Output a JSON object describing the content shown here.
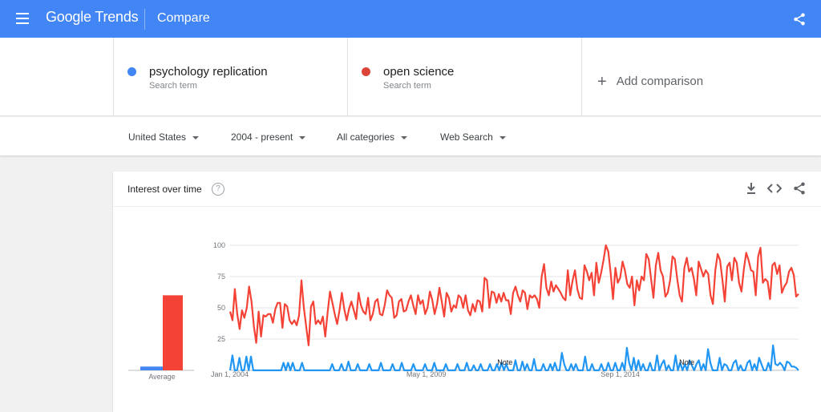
{
  "header": {
    "logo_google": "Google",
    "logo_trends": "Trends",
    "title": "Compare"
  },
  "terms": [
    {
      "name": "psychology replication",
      "sub": "Search term",
      "color": "#4285f4"
    },
    {
      "name": "open science",
      "sub": "Search term",
      "color": "#db4437"
    }
  ],
  "add_comparison": "Add comparison",
  "filters": {
    "region": "United States",
    "time": "2004 - present",
    "category": "All categories",
    "search_type": "Web Search"
  },
  "card": {
    "title": "Interest over time",
    "help_glyph": "?"
  },
  "chart_data": {
    "type": "line",
    "ylim": [
      0,
      100
    ],
    "yticks": [
      25,
      50,
      75,
      100
    ],
    "xtick_labels": [
      "Jan 1, 2004",
      "May 1, 2009",
      "Sep 1, 2014"
    ],
    "notes": [
      "Note",
      "Note"
    ],
    "average": {
      "label": "Average",
      "values": [
        3,
        60
      ]
    },
    "series": [
      {
        "color": "#4285f4",
        "values": [
          0,
          12,
          0,
          0,
          10,
          0,
          0,
          11,
          0,
          11,
          0,
          0,
          0,
          0,
          0,
          0,
          0,
          0,
          0,
          0,
          0,
          0,
          0,
          6,
          0,
          6,
          0,
          6,
          0,
          0,
          0,
          6,
          0,
          0,
          0,
          0,
          0,
          0,
          0,
          0,
          0,
          0,
          0,
          0,
          5,
          0,
          0,
          0,
          5,
          0,
          0,
          7,
          0,
          0,
          0,
          5,
          0,
          0,
          0,
          0,
          5,
          0,
          0,
          0,
          0,
          6,
          0,
          0,
          0,
          0,
          5,
          0,
          0,
          0,
          6,
          0,
          0,
          0,
          0,
          5,
          0,
          0,
          0,
          0,
          5,
          0,
          0,
          0,
          6,
          0,
          0,
          0,
          0,
          5,
          0,
          0,
          0,
          0,
          5,
          0,
          0,
          0,
          6,
          0,
          0,
          4,
          0,
          0,
          5,
          0,
          0,
          0,
          5,
          0,
          0,
          5,
          0,
          6,
          0,
          5,
          0,
          0,
          0,
          8,
          0,
          0,
          7,
          0,
          5,
          0,
          0,
          9,
          0,
          0,
          0,
          5,
          0,
          0,
          5,
          0,
          6,
          0,
          0,
          14,
          5,
          0,
          0,
          5,
          0,
          5,
          0,
          0,
          0,
          11,
          0,
          0,
          5,
          0,
          0,
          0,
          5,
          0,
          0,
          6,
          0,
          0,
          6,
          0,
          0,
          6,
          0,
          18,
          6,
          0,
          10,
          0,
          8,
          0,
          5,
          0,
          0,
          6,
          0,
          0,
          12,
          0,
          5,
          8,
          0,
          4,
          0,
          0,
          12,
          0,
          6,
          0,
          5,
          0,
          8,
          4,
          0,
          5,
          8,
          0,
          5,
          0,
          17,
          6,
          0,
          0,
          0,
          10,
          0,
          5,
          4,
          0,
          0,
          6,
          8,
          0,
          4,
          0,
          0,
          6,
          8,
          0,
          5,
          0,
          10,
          5,
          0,
          0,
          6,
          0,
          20,
          5,
          4,
          6,
          4,
          0,
          7,
          6,
          3,
          3,
          2,
          0
        ],
        "values_are_approx": false
      },
      {
        "color": "#db4437",
        "values": [
          47,
          40,
          65,
          45,
          33,
          48,
          42,
          50,
          67,
          55,
          35,
          22,
          47,
          27,
          44,
          43,
          45,
          45,
          38,
          49,
          54,
          54,
          34,
          53,
          51,
          40,
          37,
          40,
          36,
          44,
          72,
          50,
          35,
          20,
          51,
          55,
          37,
          40,
          37,
          43,
          27,
          46,
          63,
          54,
          45,
          37,
          48,
          62,
          49,
          40,
          49,
          55,
          48,
          41,
          62,
          52,
          47,
          45,
          58,
          40,
          45,
          55,
          57,
          45,
          44,
          52,
          64,
          60,
          58,
          42,
          44,
          55,
          57,
          47,
          48,
          55,
          60,
          52,
          45,
          60,
          53,
          56,
          45,
          50,
          63,
          56,
          45,
          53,
          66,
          55,
          43,
          62,
          58,
          47,
          52,
          50,
          60,
          58,
          50,
          60,
          48,
          44,
          53,
          47,
          56,
          55,
          47,
          74,
          72,
          50,
          63,
          62,
          54,
          61,
          55,
          62,
          56,
          56,
          45,
          62,
          67,
          60,
          55,
          64,
          62,
          49,
          60,
          58,
          60,
          57,
          50,
          75,
          85,
          66,
          60,
          71,
          63,
          68,
          65,
          62,
          58,
          56,
          80,
          60,
          72,
          80,
          65,
          58,
          57,
          84,
          79,
          72,
          78,
          60,
          86,
          70,
          78,
          88,
          100,
          95,
          78,
          57,
          82,
          70,
          74,
          87,
          80,
          69,
          66,
          75,
          52,
          72,
          64,
          75,
          72,
          93,
          89,
          73,
          58,
          84,
          94,
          80,
          75,
          59,
          62,
          72,
          91,
          89,
          73,
          60,
          55,
          82,
          90,
          79,
          82,
          73,
          60,
          87,
          81,
          75,
          80,
          77,
          60,
          53,
          80,
          93,
          88,
          72,
          55,
          83,
          86,
          72,
          90,
          86,
          70,
          63,
          81,
          94,
          88,
          80,
          79,
          60,
          91,
          98,
          70,
          73,
          71,
          57,
          84,
          86,
          77,
          84,
          62,
          67,
          70,
          79,
          82,
          76,
          59,
          61
        ]
      }
    ]
  }
}
